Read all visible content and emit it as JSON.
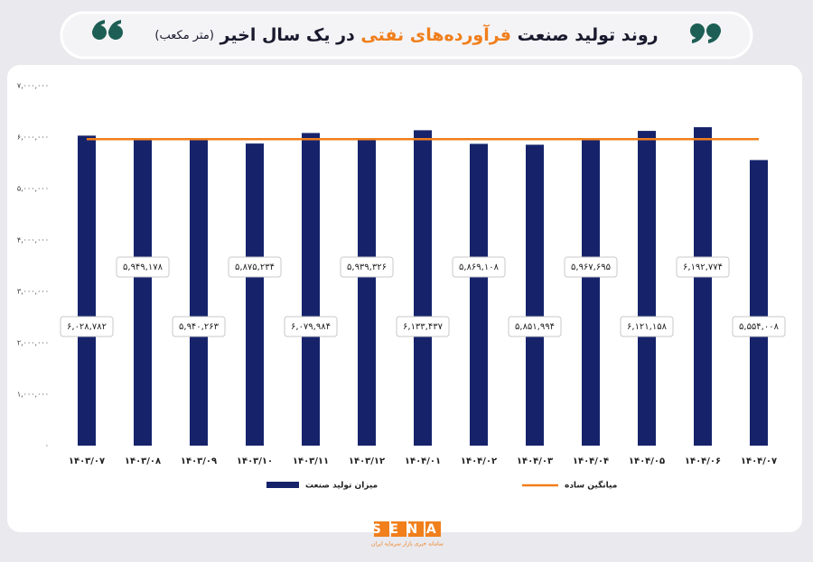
{
  "chart_data": {
    "type": "bar",
    "title": "روند تولید صنعت",
    "title_highlight": "فرآورده‌های نفتی",
    "title_end": "در یک سال اخیر",
    "title_unit": "(متر مکعب)",
    "categories": [
      "۱۴۰۳/۰۷",
      "۱۴۰۳/۰۸",
      "۱۴۰۳/۰۹",
      "۱۴۰۳/۱۰",
      "۱۴۰۳/۱۱",
      "۱۴۰۳/۱۲",
      "۱۴۰۴/۰۱",
      "۱۴۰۴/۰۲",
      "۱۴۰۴/۰۳",
      "۱۴۰۴/۰۴",
      "۱۴۰۴/۰۵",
      "۱۴۰۴/۰۶",
      "۱۴۰۴/۰۷"
    ],
    "series": [
      {
        "name": "میزان تولید صنعت",
        "color": "#16236b",
        "values": [
          6028782,
          5949178,
          5940263,
          5875234,
          6079984,
          5939326,
          6133437,
          5869108,
          5851994,
          5967695,
          6121158,
          6192774,
          5554008
        ],
        "value_labels": [
          "۶,۰۲۸,۷۸۲",
          "۵,۹۴۹,۱۷۸",
          "۵,۹۴۰,۲۶۳",
          "۵,۸۷۵,۲۳۴",
          "۶,۰۷۹,۹۸۴",
          "۵,۹۳۹,۳۲۶",
          "۶,۱۳۳,۴۳۷",
          "۵,۸۶۹,۱۰۸",
          "۵,۸۵۱,۹۹۴",
          "۵,۹۶۷,۶۹۵",
          "۶,۱۲۱,۱۵۸",
          "۶,۱۹۲,۷۷۴",
          "۵,۵۵۴,۰۰۸"
        ]
      },
      {
        "name": "میانگین ساده",
        "color": "#f07f1c",
        "value": 5960000
      }
    ],
    "ylim": [
      0,
      7000000
    ],
    "yticks": [
      {
        "value": 0,
        "label": "۰"
      },
      {
        "value": 1000000,
        "label": "۱,۰۰۰,۰۰۰"
      },
      {
        "value": 2000000,
        "label": "۲,۰۰۰,۰۰۰"
      },
      {
        "value": 3000000,
        "label": "۳,۰۰۰,۰۰۰"
      },
      {
        "value": 4000000,
        "label": "۴,۰۰۰,۰۰۰"
      },
      {
        "value": 5000000,
        "label": "۵,۰۰۰,۰۰۰"
      },
      {
        "value": 6000000,
        "label": "۶,۰۰۰,۰۰۰"
      },
      {
        "value": 7000000,
        "label": "۷,۰۰۰,۰۰۰"
      }
    ],
    "logo": "SENA",
    "logo_tagline": "سامانه خبری بازار سرمایه ایران"
  }
}
